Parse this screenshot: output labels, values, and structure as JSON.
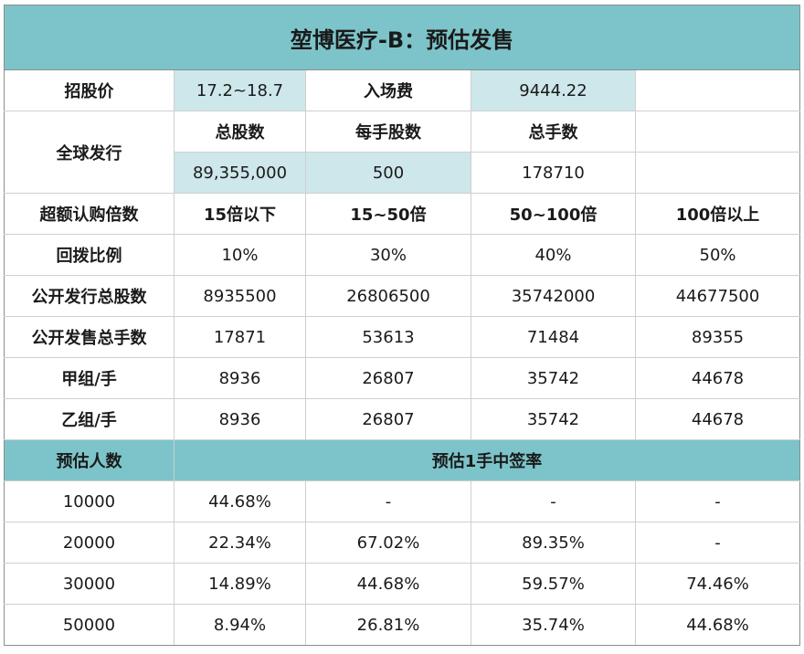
{
  "title": "堃博医疗-B：预估发售",
  "price_row": {
    "price_label": "招股价",
    "price_value": "17.2~18.7",
    "fee_label": "入场费",
    "fee_value": "9444.22"
  },
  "global_offering": {
    "label": "全球发行",
    "total_shares_label": "总股数",
    "shares_per_lot_label": "每手股数",
    "total_lots_label": "总手数",
    "total_shares": "89,355,000",
    "shares_per_lot": "500",
    "total_lots": "178710"
  },
  "subscription": {
    "label": "超额认购倍数",
    "tiers": [
      "15倍以下",
      "15~50倍",
      "50~100倍",
      "100倍以上"
    ]
  },
  "rows": [
    {
      "label": "回拨比例",
      "values": [
        "10%",
        "30%",
        "40%",
        "50%"
      ]
    },
    {
      "label": "公开发行总股数",
      "values": [
        "8935500",
        "26806500",
        "35742000",
        "44677500"
      ]
    },
    {
      "label": "公开发售总手数",
      "values": [
        "17871",
        "53613",
        "71484",
        "89355"
      ]
    },
    {
      "label": "甲组/手",
      "values": [
        "8936",
        "26807",
        "35742",
        "44678"
      ]
    },
    {
      "label": "乙组/手",
      "values": [
        "8936",
        "26807",
        "35742",
        "44678"
      ]
    }
  ],
  "estimate_header": {
    "people_label": "预估人数",
    "rate_label": "预估1手中签率"
  },
  "estimates": [
    {
      "people": "10000",
      "values": [
        "44.68%",
        "-",
        "-",
        "-"
      ]
    },
    {
      "people": "20000",
      "values": [
        "22.34%",
        "67.02%",
        "89.35%",
        "-"
      ]
    },
    {
      "people": "30000",
      "values": [
        "14.89%",
        "44.68%",
        "59.57%",
        "74.46%"
      ]
    },
    {
      "people": "50000",
      "values": [
        "8.94%",
        "26.81%",
        "35.74%",
        "44.68%"
      ]
    }
  ],
  "colors": {
    "header_teal": "#7cc4c9",
    "light_teal": "#cde7ea",
    "grid": "#cfcfcf"
  }
}
